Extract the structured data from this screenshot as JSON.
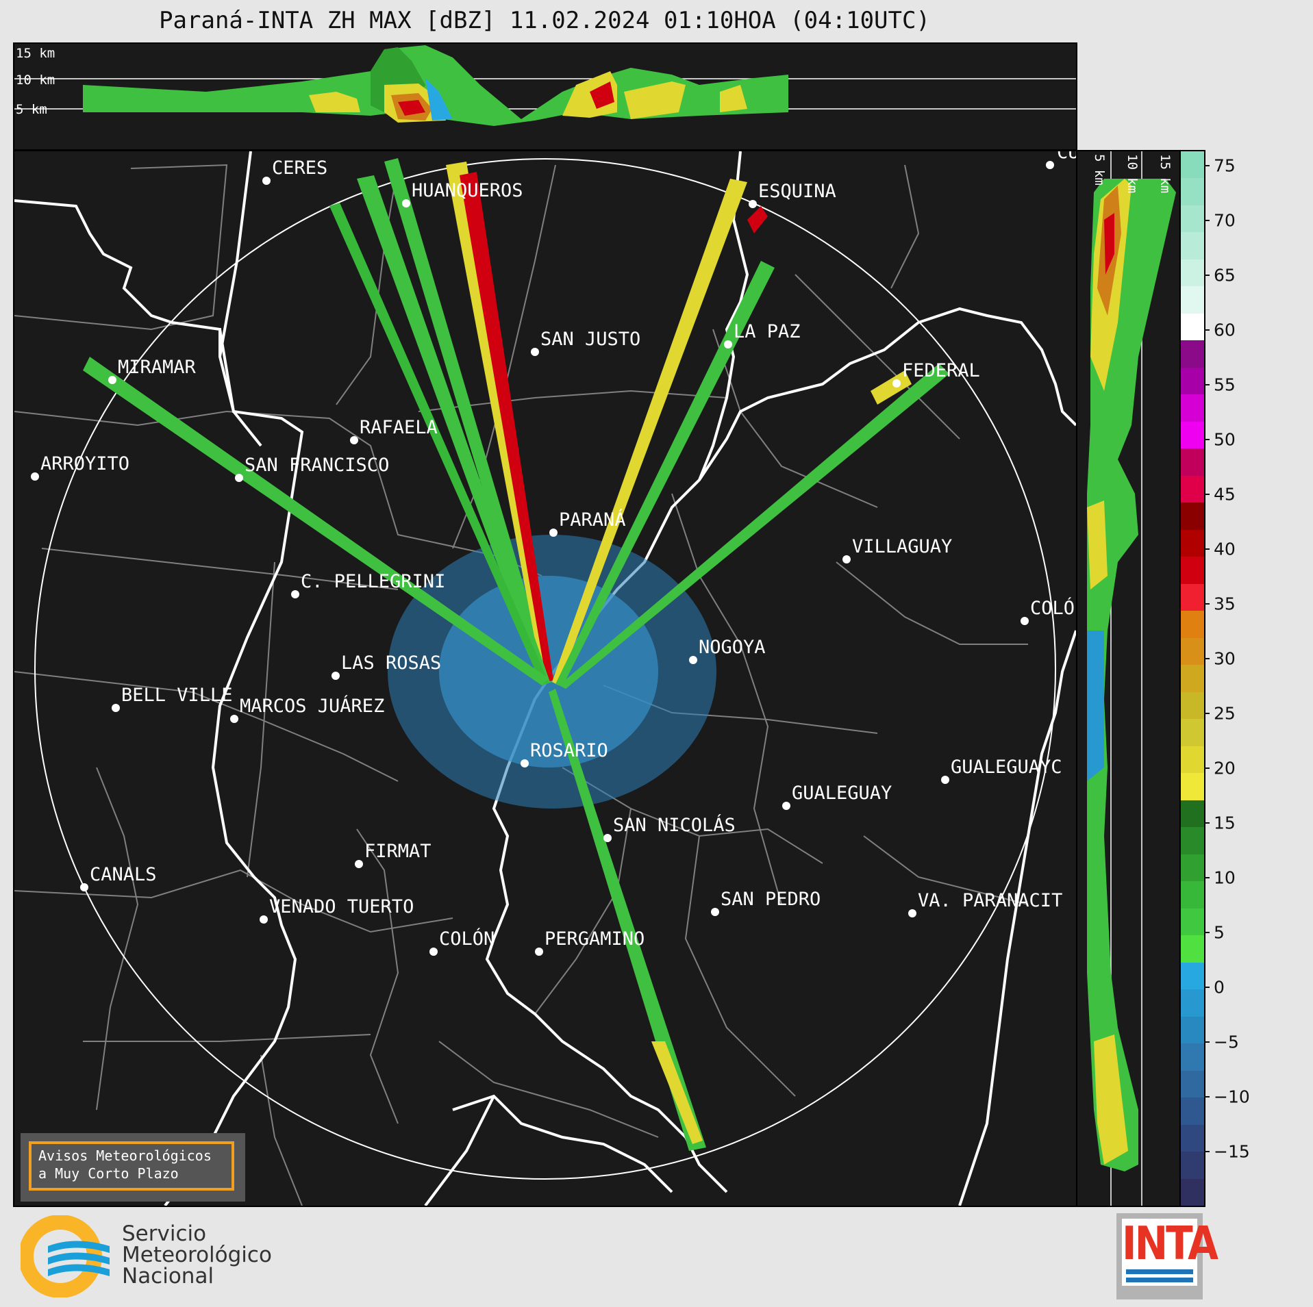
{
  "title": "Paraná-INTA ZH MAX [dBZ] 11.02.2024 01:10HOA (04:10UTC)",
  "cross_section_top": {
    "altitude_labels": [
      "15 km",
      "10 km",
      "5 km"
    ]
  },
  "cross_section_right": {
    "altitude_labels": [
      "5 km",
      "10 km",
      "15 km"
    ]
  },
  "map": {
    "cities": [
      {
        "name": "CERES"
      },
      {
        "name": "HUANQUEROS"
      },
      {
        "name": "ESQUINA"
      },
      {
        "name": "CU"
      },
      {
        "name": "SAN JUSTO"
      },
      {
        "name": "LA PAZ"
      },
      {
        "name": "MIRAMAR"
      },
      {
        "name": "FEDERAL"
      },
      {
        "name": "RAFAELA"
      },
      {
        "name": "ARROYITO"
      },
      {
        "name": "SAN FRANCISCO"
      },
      {
        "name": "PARANÁ"
      },
      {
        "name": "VILLAGUAY"
      },
      {
        "name": "C. PELLEGRINI"
      },
      {
        "name": "COLÓ"
      },
      {
        "name": "NOGOYA"
      },
      {
        "name": "LAS ROSAS"
      },
      {
        "name": "BELL VILLE"
      },
      {
        "name": "MARCOS JUÁREZ"
      },
      {
        "name": "ROSARIO"
      },
      {
        "name": "GUALEGUAYC"
      },
      {
        "name": "GUALEGUAY"
      },
      {
        "name": "SAN NICOLÁS"
      },
      {
        "name": "FIRMAT"
      },
      {
        "name": "CANALS"
      },
      {
        "name": "SAN PEDRO"
      },
      {
        "name": "VENADO TUERTO"
      },
      {
        "name": "VA. PARANACIT"
      },
      {
        "name": "COLÓN"
      },
      {
        "name": "PERGAMINO"
      }
    ],
    "warning_box": {
      "line1": "Avisos Meteorológicos",
      "line2": "a Muy Corto Plazo",
      "border_color": "#f0a020"
    }
  },
  "colorbar": {
    "unit": "dBZ",
    "ticks": [
      "75",
      "70",
      "65",
      "60",
      "55",
      "50",
      "45",
      "40",
      "35",
      "30",
      "25",
      "20",
      "15",
      "10",
      "5",
      "0",
      "−5",
      "−10",
      "−15"
    ],
    "colors_top_to_bottom": [
      "#88dcbc",
      "#96e0c4",
      "#a6e6cc",
      "#b8ecd8",
      "#cbf2e3",
      "#e0f8ef",
      "#ffffff",
      "#8a0a8a",
      "#a800a8",
      "#d400d4",
      "#f000f0",
      "#c0005a",
      "#e0004a",
      "#8a0000",
      "#b00000",
      "#d00010",
      "#f02030",
      "#e08010",
      "#d89018",
      "#d0a820",
      "#c8b828",
      "#d0c830",
      "#e0d830",
      "#f0e838",
      "#207020",
      "#288a28",
      "#30a030",
      "#38b838",
      "#40c840",
      "#50e040",
      "#28a8e0",
      "#2898d0",
      "#2888c0",
      "#3078b0",
      "#3068a0",
      "#305890",
      "#304880",
      "#303c70",
      "#303060"
    ]
  },
  "logos": {
    "smn_line1": "Servicio",
    "smn_line2": "Meteorológico",
    "smn_line3": "Nacional",
    "inta_text": "INTA",
    "smn_colors": {
      "orange": "#f9b428",
      "blue": "#1a9fd9"
    },
    "inta_colors": {
      "red": "#e63323",
      "blue": "#1f74b8"
    }
  }
}
